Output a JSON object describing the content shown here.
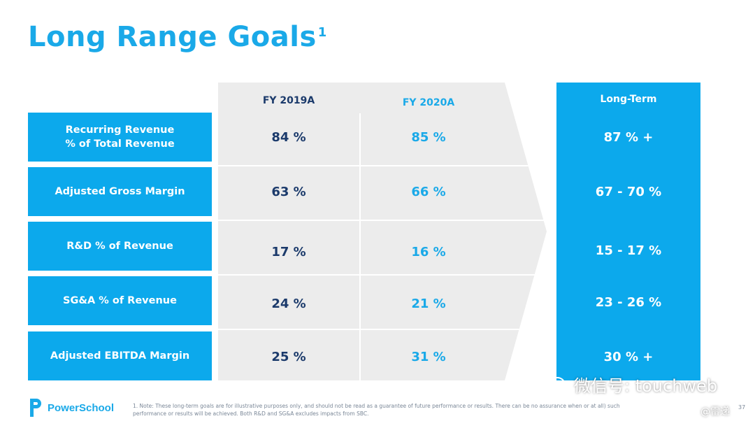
{
  "title": "Long Range Goals",
  "title_superscript": "1",
  "columns": {
    "fy2019": "FY 2019A",
    "fy2020": "FY 2020A",
    "long_term": "Long-Term"
  },
  "rows": [
    {
      "label": "Recurring Revenue\n% of Total Revenue",
      "fy2019": "84 %",
      "fy2020": "85 %",
      "long_term": "87 % +"
    },
    {
      "label": "Adjusted Gross Margin",
      "fy2019": "63 %",
      "fy2020": "66 %",
      "long_term": "67 - 70 %"
    },
    {
      "label": "R&D % of Revenue",
      "fy2019": "17 %",
      "fy2020": "16 %",
      "long_term": "15 - 17 %"
    },
    {
      "label": "SG&A % of Revenue",
      "fy2019": "24 %",
      "fy2020": "21 %",
      "long_term": "23 - 26 %"
    },
    {
      "label": "Adjusted EBITDA Margin",
      "fy2019": "25 %",
      "fy2020": "31 %",
      "long_term": "30 % +"
    }
  ],
  "logo": {
    "text": "PowerSchool"
  },
  "footnote": "1. Note: These long-term goals are for illustrative purposes only, and should not be read as a guarantee of future performance or results. There can be no assurance when or at all) such performance or results will be achieved. Both R&D and SG&A excludes impacts from SBC.",
  "page_number": "37",
  "watermark": {
    "main": "微信号: touchweb",
    "sub": "@雷递"
  },
  "colors": {
    "accent": "#0ca9ec",
    "title": "#1aa9e8",
    "navy": "#1b3a6b",
    "arrow": "#ececec"
  }
}
